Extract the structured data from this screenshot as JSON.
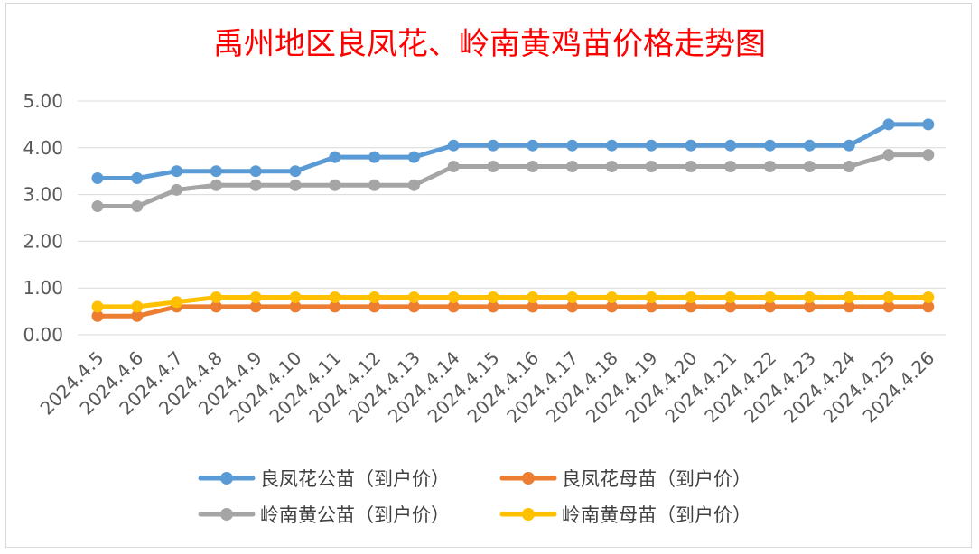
{
  "chart_data": {
    "type": "line",
    "title": "禹州地区良凤花、岭南黄鸡苗价格走势图",
    "xlabel": "",
    "ylabel": "",
    "ylim": [
      0,
      5
    ],
    "yticks": [
      "0.00",
      "1.00",
      "2.00",
      "3.00",
      "4.00",
      "5.00"
    ],
    "grid": true,
    "legend_position": "bottom",
    "categories": [
      "2024.4.5",
      "2024.4.6",
      "2024.4.7",
      "2024.4.8",
      "2024.4.9",
      "2024.4.10",
      "2024.4.11",
      "2024.4.12",
      "2024.4.13",
      "2024.4.14",
      "2024.4.15",
      "2024.4.16",
      "2024.4.17",
      "2024.4.18",
      "2024.4.19",
      "2024.4.20",
      "2024.4.21",
      "2024.4.22",
      "2024.4.23",
      "2024.4.24",
      "2024.4.25",
      "2024.4.26"
    ],
    "series": [
      {
        "name": "良凤花公苗（到户价）",
        "color": "#5b9bd5",
        "values": [
          3.35,
          3.35,
          3.5,
          3.5,
          3.5,
          3.5,
          3.8,
          3.8,
          3.8,
          4.05,
          4.05,
          4.05,
          4.05,
          4.05,
          4.05,
          4.05,
          4.05,
          4.05,
          4.05,
          4.05,
          4.5,
          4.5
        ]
      },
      {
        "name": "良凤花母苗（到户价）",
        "color": "#ed7d31",
        "values": [
          0.4,
          0.4,
          0.6,
          0.6,
          0.6,
          0.6,
          0.6,
          0.6,
          0.6,
          0.6,
          0.6,
          0.6,
          0.6,
          0.6,
          0.6,
          0.6,
          0.6,
          0.6,
          0.6,
          0.6,
          0.6,
          0.6
        ]
      },
      {
        "name": "岭南黄公苗（到户价）",
        "color": "#a5a5a5",
        "values": [
          2.75,
          2.75,
          3.1,
          3.2,
          3.2,
          3.2,
          3.2,
          3.2,
          3.2,
          3.6,
          3.6,
          3.6,
          3.6,
          3.6,
          3.6,
          3.6,
          3.6,
          3.6,
          3.6,
          3.6,
          3.85,
          3.85
        ]
      },
      {
        "name": "岭南黄母苗（到户价）",
        "color": "#ffc000",
        "values": [
          0.6,
          0.6,
          0.7,
          0.8,
          0.8,
          0.8,
          0.8,
          0.8,
          0.8,
          0.8,
          0.8,
          0.8,
          0.8,
          0.8,
          0.8,
          0.8,
          0.8,
          0.8,
          0.8,
          0.8,
          0.8,
          0.8
        ]
      }
    ]
  }
}
